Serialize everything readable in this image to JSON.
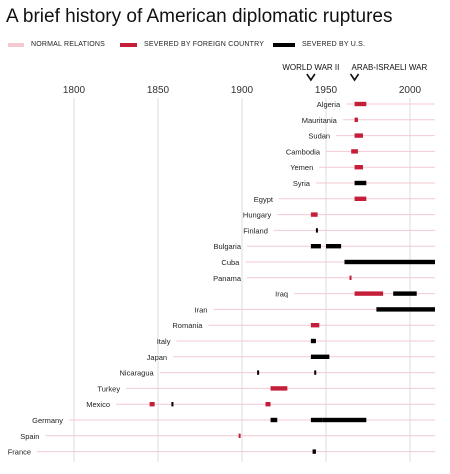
{
  "title": "A brief history of American diplomatic ruptures",
  "legend": {
    "normal": "NORMAL RELATIONS",
    "foreign": "SEVERED BY FOREIGN COUNTRY",
    "us": "SEVERED BY U.S."
  },
  "colors": {
    "normal": "#f4c9d2",
    "foreign": "#c41e3a",
    "us": "#000000",
    "grid": "#dddddd"
  },
  "chart_data": {
    "type": "timeline",
    "x_ticks": [
      1800,
      1850,
      1900,
      1950,
      2000
    ],
    "xlim": [
      1780,
      2008
    ],
    "events": [
      {
        "label": "WORLD WAR II",
        "year": 1941
      },
      {
        "label": "ARAB-ISRAELI WAR",
        "year": 1967
      }
    ],
    "rows": [
      {
        "country": "Algeria",
        "start": 1962,
        "segments": [
          {
            "from": 1967,
            "to": 1974,
            "by": "foreign"
          }
        ]
      },
      {
        "country": "Mauritania",
        "start": 1960,
        "segments": [
          {
            "from": 1967,
            "to": 1969,
            "by": "foreign"
          }
        ]
      },
      {
        "country": "Sudan",
        "start": 1956,
        "segments": [
          {
            "from": 1967,
            "to": 1972,
            "by": "foreign"
          }
        ]
      },
      {
        "country": "Cambodia",
        "start": 1950,
        "segments": [
          {
            "from": 1965,
            "to": 1969,
            "by": "foreign"
          }
        ]
      },
      {
        "country": "Yemen",
        "start": 1946,
        "segments": [
          {
            "from": 1967,
            "to": 1972,
            "by": "foreign"
          }
        ]
      },
      {
        "country": "Syria",
        "start": 1944,
        "segments": [
          {
            "from": 1967,
            "to": 1974,
            "by": "us"
          }
        ]
      },
      {
        "country": "Egypt",
        "start": 1922,
        "segments": [
          {
            "from": 1967,
            "to": 1974,
            "by": "foreign"
          }
        ]
      },
      {
        "country": "Hungary",
        "start": 1921,
        "segments": [
          {
            "from": 1941,
            "to": 1945,
            "by": "foreign"
          }
        ]
      },
      {
        "country": "Finland",
        "start": 1919,
        "segments": [
          {
            "from": 1944,
            "to": 1945,
            "by": "us"
          }
        ]
      },
      {
        "country": "Bulgaria",
        "start": 1903,
        "segments": [
          {
            "from": 1941,
            "to": 1947,
            "by": "us"
          },
          {
            "from": 1950,
            "to": 1959,
            "by": "us"
          }
        ]
      },
      {
        "country": "Cuba",
        "start": 1902,
        "segments": [
          {
            "from": 1961,
            "to": 2015,
            "by": "us"
          }
        ]
      },
      {
        "country": "Panama",
        "start": 1903,
        "segments": [
          {
            "from": 1964,
            "to": 1964.5,
            "by": "foreign"
          }
        ]
      },
      {
        "country": "Iraq",
        "start": 1931,
        "segments": [
          {
            "from": 1967,
            "to": 1984,
            "by": "foreign"
          },
          {
            "from": 1990,
            "to": 2004,
            "by": "us"
          }
        ]
      },
      {
        "country": "Iran",
        "start": 1883,
        "segments": [
          {
            "from": 1980,
            "to": 2015,
            "by": "us"
          }
        ]
      },
      {
        "country": "Romania",
        "start": 1880,
        "segments": [
          {
            "from": 1941,
            "to": 1946,
            "by": "foreign"
          }
        ]
      },
      {
        "country": "Italy",
        "start": 1861,
        "segments": [
          {
            "from": 1941,
            "to": 1944,
            "by": "us"
          }
        ]
      },
      {
        "country": "Japan",
        "start": 1859,
        "segments": [
          {
            "from": 1941,
            "to": 1952,
            "by": "us"
          }
        ]
      },
      {
        "country": "Nicaragua",
        "start": 1851,
        "segments": [
          {
            "from": 1909,
            "to": 1910,
            "by": "us"
          },
          {
            "from": 1943,
            "to": 1943.7,
            "by": "us"
          }
        ]
      },
      {
        "country": "Turkey",
        "start": 1831,
        "segments": [
          {
            "from": 1917,
            "to": 1927,
            "by": "foreign"
          }
        ]
      },
      {
        "country": "Mexico",
        "start": 1825,
        "segments": [
          {
            "from": 1845,
            "to": 1848,
            "by": "foreign"
          },
          {
            "from": 1858,
            "to": 1859,
            "by": "us"
          },
          {
            "from": 1914,
            "to": 1917,
            "by": "foreign"
          }
        ]
      },
      {
        "country": "Germany",
        "start": 1797,
        "segments": [
          {
            "from": 1917,
            "to": 1921,
            "by": "us"
          },
          {
            "from": 1941,
            "to": 1948,
            "by": "us"
          },
          {
            "from": 1948,
            "to": 1974,
            "by": "us"
          }
        ]
      },
      {
        "country": "Spain",
        "start": 1783,
        "segments": [
          {
            "from": 1898,
            "to": 1899,
            "by": "foreign"
          }
        ]
      },
      {
        "country": "France",
        "start": 1778,
        "segments": [
          {
            "from": 1942,
            "to": 1944,
            "by": "us"
          }
        ]
      }
    ]
  }
}
